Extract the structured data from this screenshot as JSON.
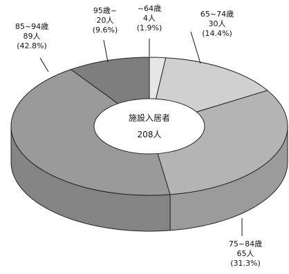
{
  "chart_data": {
    "type": "pie",
    "variant": "3d-donut",
    "center_title": "施設入居者",
    "center_total": "208人",
    "slices": [
      {
        "category": "~64歳",
        "count": "4人",
        "percent": "(1.9%)",
        "value": 1.9,
        "color": "#e6e6e6"
      },
      {
        "category": "65~74歳",
        "count": "30人",
        "percent": "(14.4%)",
        "value": 14.4,
        "color": "#d0d0d0"
      },
      {
        "category": "75~84歳",
        "count": "65人",
        "percent": "(31.3%)",
        "value": 31.3,
        "color": "#b4b4b4"
      },
      {
        "category": "85~94歳",
        "count": "89人",
        "percent": "(42.8%)",
        "value": 42.8,
        "color": "#9a9a9a"
      },
      {
        "category": "95歳~",
        "count": "20人",
        "percent": "(9.6%)",
        "value": 9.6,
        "color": "#7e7e7e"
      }
    ]
  }
}
